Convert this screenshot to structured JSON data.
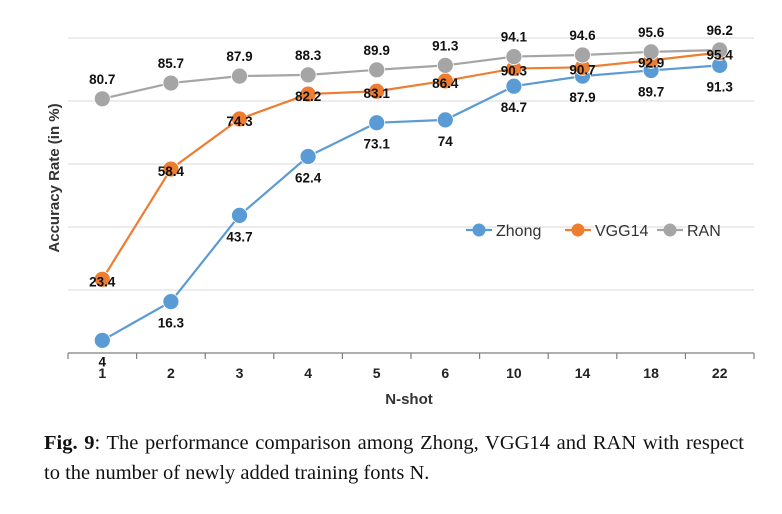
{
  "chart_data": {
    "type": "line",
    "categories": [
      "1",
      "2",
      "3",
      "4",
      "5",
      "6",
      "10",
      "14",
      "18",
      "22"
    ],
    "series": [
      {
        "name": "Zhong",
        "color": "#5b9bd5",
        "values": [
          4,
          16.3,
          43.7,
          62.4,
          73.1,
          74,
          84.7,
          87.9,
          89.7,
          91.3
        ]
      },
      {
        "name": "VGG14",
        "color": "#ed7d31",
        "values": [
          23.4,
          58.4,
          74.3,
          82.2,
          83.1,
          86.4,
          90.3,
          90.7,
          92.9,
          95.4
        ]
      },
      {
        "name": "RAN",
        "color": "#a5a5a5",
        "values": [
          80.7,
          85.7,
          87.9,
          88.3,
          89.9,
          91.3,
          94.1,
          94.6,
          95.6,
          96.2
        ]
      }
    ],
    "xlabel": "N-shot",
    "ylabel": "Accuracy Rate (in %)",
    "ylim": [
      0,
      100
    ],
    "grid": true,
    "legend": "right"
  },
  "caption": {
    "fig_label": "Fig. 9",
    "text": ":  The performance comparison among Zhong, VGG14 and RAN with respect to the number of newly added training fonts N."
  }
}
